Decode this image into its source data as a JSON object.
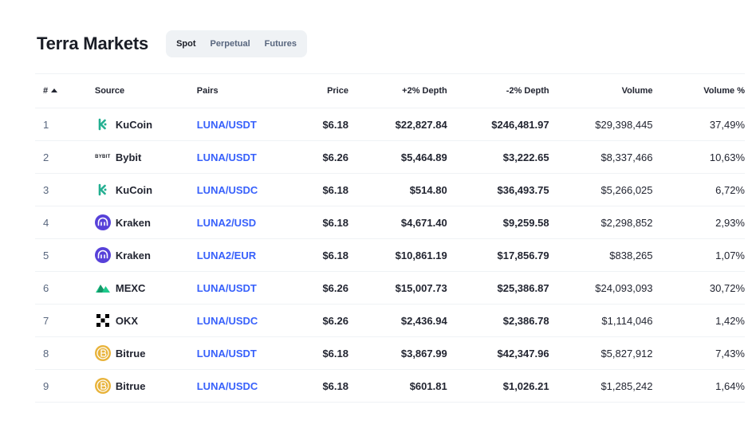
{
  "header": {
    "title": "Terra Markets",
    "tabs": [
      {
        "label": "Spot",
        "active": true
      },
      {
        "label": "Perpetual",
        "active": false
      },
      {
        "label": "Futures",
        "active": false
      }
    ]
  },
  "table": {
    "columns": {
      "rank": "#",
      "source": "Source",
      "pairs": "Pairs",
      "price": "Price",
      "plus_depth": "+2% Depth",
      "minus_depth": "-2% Depth",
      "volume": "Volume",
      "volume_pct": "Volume %"
    },
    "rows": [
      {
        "rank": "1",
        "source": "KuCoin",
        "logo": "kucoin",
        "pair": "LUNA/USDT",
        "price": "$6.18",
        "plus_depth": "$22,827.84",
        "minus_depth": "$246,481.97",
        "volume": "$29,398,445",
        "volume_pct": "37,49%"
      },
      {
        "rank": "2",
        "source": "Bybit",
        "logo": "bybit",
        "logo_text": "BYBIT",
        "pair": "LUNA/USDT",
        "price": "$6.26",
        "plus_depth": "$5,464.89",
        "minus_depth": "$3,222.65",
        "volume": "$8,337,466",
        "volume_pct": "10,63%"
      },
      {
        "rank": "3",
        "source": "KuCoin",
        "logo": "kucoin",
        "pair": "LUNA/USDC",
        "price": "$6.18",
        "plus_depth": "$514.80",
        "minus_depth": "$36,493.75",
        "volume": "$5,266,025",
        "volume_pct": "6,72%"
      },
      {
        "rank": "4",
        "source": "Kraken",
        "logo": "kraken",
        "pair": "LUNA2/USD",
        "price": "$6.18",
        "plus_depth": "$4,671.40",
        "minus_depth": "$9,259.58",
        "volume": "$2,298,852",
        "volume_pct": "2,93%"
      },
      {
        "rank": "5",
        "source": "Kraken",
        "logo": "kraken",
        "pair": "LUNA2/EUR",
        "price": "$6.18",
        "plus_depth": "$10,861.19",
        "minus_depth": "$17,856.79",
        "volume": "$838,265",
        "volume_pct": "1,07%"
      },
      {
        "rank": "6",
        "source": "MEXC",
        "logo": "mexc",
        "pair": "LUNA/USDT",
        "price": "$6.26",
        "plus_depth": "$15,007.73",
        "minus_depth": "$25,386.87",
        "volume": "$24,093,093",
        "volume_pct": "30,72%"
      },
      {
        "rank": "7",
        "source": "OKX",
        "logo": "okx",
        "pair": "LUNA/USDC",
        "price": "$6.26",
        "plus_depth": "$2,436.94",
        "minus_depth": "$2,386.78",
        "volume": "$1,114,046",
        "volume_pct": "1,42%"
      },
      {
        "rank": "8",
        "source": "Bitrue",
        "logo": "bitrue",
        "pair": "LUNA/USDT",
        "price": "$6.18",
        "plus_depth": "$3,867.99",
        "minus_depth": "$42,347.96",
        "volume": "$5,827,912",
        "volume_pct": "7,43%"
      },
      {
        "rank": "9",
        "source": "Bitrue",
        "logo": "bitrue",
        "pair": "LUNA/USDC",
        "price": "$6.18",
        "plus_depth": "$601.81",
        "minus_depth": "$1,026.21",
        "volume": "$1,285,242",
        "volume_pct": "1,64%"
      }
    ]
  },
  "colors": {
    "link": "#3861fb",
    "kucoin": "#23af91",
    "kraken": "#5741d9",
    "mexc": "#1ec98b",
    "bitrue": "#e8b33b",
    "okx": "#000000"
  }
}
